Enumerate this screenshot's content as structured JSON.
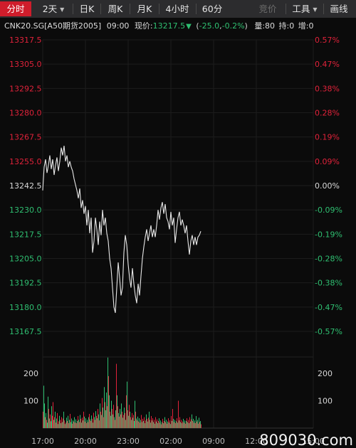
{
  "toolbar": {
    "tabs": [
      {
        "label": "分时",
        "active": true
      },
      {
        "label": "2天",
        "dropdown": true
      },
      {
        "label": "日K"
      },
      {
        "label": "周K"
      },
      {
        "label": "月K"
      },
      {
        "label": "4小时"
      },
      {
        "label": "60分"
      }
    ],
    "right": [
      {
        "label": "竞价",
        "disabled": true
      },
      {
        "label": "工具",
        "dropdown": true
      },
      {
        "label": "画线"
      }
    ]
  },
  "quote": {
    "symbol": "CNK20.SG[A50期货2005]",
    "time": "09:00",
    "price_label": "现价:",
    "price": "13217.5",
    "change": "-25.0",
    "change_pct": "-0.2%",
    "volume": "量:80",
    "open_interest": "持:0",
    "oi_change": "增:0"
  },
  "colors": {
    "up": "#e0223a",
    "down": "#2fbf71",
    "neutral": "#d8d8d8",
    "line": "#e8e8e8",
    "bg": "#0b0b0b"
  },
  "watermark": "809030.com",
  "chart_data": {
    "type": "line",
    "prev_close": 13242.5,
    "y_ticks": [
      "13317.5",
      "13305.0",
      "13292.5",
      "13280.0",
      "13267.5",
      "13255.0",
      "13242.5",
      "13230.0",
      "13217.5",
      "13205.0",
      "13192.5",
      "13180.0",
      "13167.5"
    ],
    "pct_ticks": [
      "0.57%",
      "0.47%",
      "0.38%",
      "0.28%",
      "0.19%",
      "0.09%",
      "0.00%",
      "-0.09%",
      "-0.19%",
      "-0.28%",
      "-0.38%",
      "-0.47%",
      "-0.57%"
    ],
    "ylim": [
      13167.5,
      13317.5
    ],
    "x_ticks": [
      "17:00",
      "20:00",
      "23:00",
      "02:00",
      "09:00",
      "12:00",
      "15:00"
    ],
    "volume_ticks": [
      "200",
      "100"
    ],
    "volume_max": 260,
    "price_points": [
      [
        0,
        13240
      ],
      [
        2,
        13252
      ],
      [
        4,
        13256
      ],
      [
        6,
        13249
      ],
      [
        8,
        13253
      ],
      [
        10,
        13258
      ],
      [
        12,
        13251
      ],
      [
        14,
        13256
      ],
      [
        16,
        13248
      ],
      [
        18,
        13253
      ],
      [
        20,
        13257
      ],
      [
        22,
        13250
      ],
      [
        24,
        13255
      ],
      [
        26,
        13262
      ],
      [
        28,
        13258
      ],
      [
        30,
        13263
      ],
      [
        32,
        13255
      ],
      [
        34,
        13258
      ],
      [
        36,
        13252
      ],
      [
        38,
        13255
      ],
      [
        40,
        13252
      ],
      [
        42,
        13250
      ],
      [
        44,
        13246
      ],
      [
        46,
        13243
      ],
      [
        48,
        13240
      ],
      [
        50,
        13236
      ],
      [
        52,
        13241
      ],
      [
        54,
        13231
      ],
      [
        56,
        13235
      ],
      [
        58,
        13228
      ],
      [
        60,
        13232
      ],
      [
        62,
        13222
      ],
      [
        64,
        13230
      ],
      [
        66,
        13218
      ],
      [
        68,
        13226
      ],
      [
        70,
        13208
      ],
      [
        72,
        13214
      ],
      [
        74,
        13226
      ],
      [
        76,
        13220
      ],
      [
        78,
        13212
      ],
      [
        80,
        13224
      ],
      [
        82,
        13217
      ],
      [
        84,
        13230
      ],
      [
        86,
        13222
      ],
      [
        88,
        13226
      ],
      [
        90,
        13218
      ],
      [
        92,
        13214
      ],
      [
        94,
        13205
      ],
      [
        96,
        13200
      ],
      [
        98,
        13190
      ],
      [
        100,
        13180
      ],
      [
        102,
        13177
      ],
      [
        104,
        13190
      ],
      [
        106,
        13203
      ],
      [
        108,
        13195
      ],
      [
        110,
        13186
      ],
      [
        112,
        13190
      ],
      [
        114,
        13208
      ],
      [
        116,
        13217
      ],
      [
        118,
        13212
      ],
      [
        120,
        13202
      ],
      [
        122,
        13195
      ],
      [
        124,
        13190
      ],
      [
        126,
        13200
      ],
      [
        128,
        13192
      ],
      [
        130,
        13186
      ],
      [
        132,
        13182
      ],
      [
        134,
        13192
      ],
      [
        136,
        13186
      ],
      [
        138,
        13196
      ],
      [
        140,
        13205
      ],
      [
        142,
        13211
      ],
      [
        144,
        13216
      ],
      [
        146,
        13220
      ],
      [
        148,
        13214
      ],
      [
        150,
        13218
      ],
      [
        152,
        13222
      ],
      [
        154,
        13216
      ],
      [
        156,
        13220
      ],
      [
        158,
        13216
      ],
      [
        160,
        13222
      ],
      [
        162,
        13230
      ],
      [
        164,
        13225
      ],
      [
        166,
        13231
      ],
      [
        168,
        13234
      ],
      [
        170,
        13228
      ],
      [
        172,
        13233
      ],
      [
        174,
        13226
      ],
      [
        176,
        13224
      ],
      [
        178,
        13220
      ],
      [
        180,
        13229
      ],
      [
        182,
        13222
      ],
      [
        184,
        13226
      ],
      [
        186,
        13213
      ],
      [
        188,
        13220
      ],
      [
        190,
        13226
      ],
      [
        192,
        13229
      ],
      [
        194,
        13222
      ],
      [
        196,
        13225
      ],
      [
        198,
        13222
      ],
      [
        200,
        13218
      ],
      [
        202,
        13222
      ],
      [
        204,
        13214
      ],
      [
        206,
        13207
      ],
      [
        208,
        13214
      ],
      [
        210,
        13217
      ],
      [
        212,
        13212
      ],
      [
        214,
        13216
      ],
      [
        216,
        13212
      ],
      [
        218,
        13216
      ],
      [
        220,
        13217
      ],
      [
        222,
        13219
      ]
    ],
    "volume_bars": [
      [
        0,
        60,
        1
      ],
      [
        1,
        155,
        0
      ],
      [
        2,
        90,
        0
      ],
      [
        3,
        40,
        1
      ],
      [
        4,
        55,
        0
      ],
      [
        5,
        30,
        1
      ],
      [
        6,
        20,
        0
      ],
      [
        7,
        115,
        0
      ],
      [
        8,
        70,
        1
      ],
      [
        9,
        35,
        0
      ],
      [
        10,
        50,
        1
      ],
      [
        11,
        25,
        0
      ],
      [
        12,
        80,
        0
      ],
      [
        13,
        45,
        1
      ],
      [
        14,
        95,
        1
      ],
      [
        15,
        30,
        0
      ],
      [
        16,
        40,
        1
      ],
      [
        17,
        60,
        0
      ],
      [
        18,
        20,
        1
      ],
      [
        19,
        35,
        0
      ],
      [
        20,
        55,
        1
      ],
      [
        21,
        15,
        0
      ],
      [
        22,
        25,
        1
      ],
      [
        23,
        45,
        0
      ],
      [
        24,
        30,
        1
      ],
      [
        25,
        18,
        0
      ],
      [
        26,
        40,
        1
      ],
      [
        27,
        22,
        0
      ],
      [
        28,
        35,
        1
      ],
      [
        29,
        60,
        0
      ],
      [
        30,
        28,
        1
      ],
      [
        31,
        15,
        0
      ],
      [
        32,
        20,
        1
      ],
      [
        33,
        38,
        0
      ],
      [
        34,
        26,
        1
      ],
      [
        35,
        45,
        0
      ],
      [
        36,
        18,
        1
      ],
      [
        37,
        30,
        0
      ],
      [
        38,
        52,
        1
      ],
      [
        39,
        22,
        0
      ],
      [
        40,
        35,
        0
      ],
      [
        41,
        16,
        1
      ],
      [
        42,
        28,
        0
      ],
      [
        43,
        24,
        1
      ],
      [
        44,
        40,
        0
      ],
      [
        45,
        20,
        1
      ],
      [
        46,
        32,
        0
      ],
      [
        47,
        18,
        1
      ],
      [
        48,
        26,
        0
      ],
      [
        49,
        44,
        1
      ],
      [
        50,
        30,
        0
      ],
      [
        51,
        22,
        1
      ],
      [
        52,
        48,
        0
      ],
      [
        53,
        34,
        1
      ],
      [
        54,
        20,
        0
      ],
      [
        55,
        38,
        1
      ],
      [
        56,
        28,
        0
      ],
      [
        57,
        60,
        1
      ],
      [
        58,
        42,
        0
      ],
      [
        59,
        24,
        1
      ],
      [
        60,
        36,
        0
      ],
      [
        61,
        18,
        1
      ],
      [
        62,
        30,
        0
      ],
      [
        63,
        22,
        1
      ],
      [
        64,
        40,
        0
      ],
      [
        65,
        52,
        1
      ],
      [
        66,
        32,
        0
      ],
      [
        67,
        26,
        1
      ],
      [
        68,
        46,
        0
      ],
      [
        69,
        34,
        1
      ],
      [
        70,
        20,
        0
      ],
      [
        71,
        56,
        1
      ],
      [
        72,
        40,
        0
      ],
      [
        73,
        30,
        1
      ],
      [
        74,
        62,
        0
      ],
      [
        75,
        44,
        1
      ],
      [
        76,
        36,
        0
      ],
      [
        77,
        70,
        1
      ],
      [
        78,
        50,
        0
      ],
      [
        79,
        28,
        1
      ],
      [
        80,
        90,
        0
      ],
      [
        81,
        60,
        1
      ],
      [
        82,
        48,
        0
      ],
      [
        83,
        110,
        1
      ],
      [
        84,
        75,
        0
      ],
      [
        85,
        40,
        1
      ],
      [
        86,
        150,
        0
      ],
      [
        87,
        95,
        1
      ],
      [
        88,
        65,
        0
      ],
      [
        89,
        130,
        0
      ],
      [
        90,
        80,
        1
      ],
      [
        91,
        258,
        0
      ],
      [
        92,
        190,
        1
      ],
      [
        93,
        120,
        0
      ],
      [
        94,
        60,
        1
      ],
      [
        95,
        45,
        0
      ],
      [
        96,
        100,
        0
      ],
      [
        97,
        70,
        1
      ],
      [
        98,
        50,
        0
      ],
      [
        99,
        85,
        1
      ],
      [
        100,
        40,
        0
      ],
      [
        101,
        30,
        1
      ],
      [
        102,
        65,
        0
      ],
      [
        103,
        235,
        1
      ],
      [
        104,
        120,
        0
      ],
      [
        105,
        80,
        1
      ],
      [
        106,
        55,
        0
      ],
      [
        107,
        42,
        1
      ],
      [
        108,
        70,
        0
      ],
      [
        109,
        50,
        1
      ],
      [
        110,
        90,
        0
      ],
      [
        111,
        60,
        1
      ],
      [
        112,
        38,
        0
      ],
      [
        113,
        48,
        1
      ],
      [
        114,
        75,
        0
      ],
      [
        115,
        55,
        1
      ],
      [
        116,
        30,
        0
      ],
      [
        117,
        120,
        1
      ],
      [
        118,
        170,
        0
      ],
      [
        119,
        65,
        1
      ],
      [
        120,
        45,
        0
      ],
      [
        121,
        85,
        1
      ],
      [
        122,
        60,
        0
      ],
      [
        123,
        40,
        1
      ],
      [
        124,
        30,
        0
      ],
      [
        125,
        55,
        1
      ],
      [
        126,
        38,
        0
      ],
      [
        127,
        48,
        1
      ],
      [
        128,
        26,
        0
      ],
      [
        129,
        100,
        0
      ],
      [
        130,
        60,
        1
      ],
      [
        131,
        35,
        0
      ],
      [
        132,
        28,
        1
      ],
      [
        133,
        42,
        0
      ],
      [
        134,
        24,
        1
      ],
      [
        135,
        36,
        0
      ],
      [
        136,
        20,
        1
      ],
      [
        137,
        30,
        0
      ],
      [
        138,
        48,
        1
      ],
      [
        139,
        22,
        0
      ],
      [
        140,
        34,
        1
      ],
      [
        141,
        26,
        0
      ],
      [
        142,
        40,
        1
      ],
      [
        143,
        18,
        0
      ],
      [
        144,
        28,
        1
      ],
      [
        145,
        50,
        0
      ],
      [
        146,
        34,
        1
      ],
      [
        147,
        24,
        0
      ],
      [
        148,
        38,
        1
      ],
      [
        149,
        60,
        0
      ],
      [
        150,
        30,
        1
      ],
      [
        151,
        20,
        0
      ],
      [
        152,
        44,
        1
      ],
      [
        153,
        28,
        0
      ],
      [
        154,
        36,
        1
      ],
      [
        155,
        22,
        0
      ],
      [
        156,
        30,
        1
      ],
      [
        157,
        16,
        0
      ],
      [
        158,
        40,
        1
      ],
      [
        159,
        24,
        0
      ],
      [
        160,
        32,
        1
      ],
      [
        161,
        18,
        0
      ],
      [
        162,
        26,
        1
      ],
      [
        163,
        36,
        0
      ],
      [
        164,
        20,
        1
      ],
      [
        165,
        28,
        0
      ],
      [
        166,
        14,
        1
      ],
      [
        167,
        22,
        0
      ],
      [
        168,
        34,
        1
      ],
      [
        169,
        18,
        0
      ],
      [
        170,
        26,
        1
      ],
      [
        171,
        40,
        0
      ],
      [
        172,
        22,
        1
      ],
      [
        173,
        30,
        0
      ],
      [
        174,
        16,
        1
      ],
      [
        175,
        24,
        0
      ],
      [
        176,
        36,
        1
      ],
      [
        177,
        20,
        0
      ],
      [
        178,
        28,
        1
      ],
      [
        179,
        15,
        0
      ],
      [
        180,
        44,
        1
      ],
      [
        181,
        26,
        0
      ],
      [
        182,
        70,
        1
      ],
      [
        183,
        34,
        0
      ],
      [
        184,
        22,
        1
      ],
      [
        185,
        30,
        0
      ],
      [
        186,
        18,
        1
      ],
      [
        187,
        25,
        0
      ],
      [
        188,
        36,
        1
      ],
      [
        189,
        20,
        0
      ],
      [
        190,
        100,
        1
      ],
      [
        191,
        28,
        0
      ],
      [
        192,
        40,
        1
      ],
      [
        193,
        22,
        0
      ],
      [
        194,
        30,
        1
      ],
      [
        195,
        18,
        0
      ],
      [
        196,
        24,
        1
      ],
      [
        197,
        34,
        0
      ],
      [
        198,
        20,
        1
      ],
      [
        199,
        28,
        0
      ],
      [
        200,
        16,
        1
      ],
      [
        201,
        26,
        0
      ],
      [
        202,
        36,
        1
      ],
      [
        203,
        22,
        0
      ],
      [
        204,
        30,
        1
      ],
      [
        205,
        18,
        0
      ],
      [
        206,
        40,
        1
      ],
      [
        207,
        24,
        0
      ],
      [
        208,
        32,
        1
      ],
      [
        209,
        50,
        0
      ],
      [
        210,
        26,
        1
      ],
      [
        211,
        34,
        0
      ],
      [
        212,
        20,
        1
      ],
      [
        213,
        28,
        0
      ],
      [
        214,
        18,
        1
      ],
      [
        215,
        44,
        0
      ],
      [
        216,
        24,
        1
      ],
      [
        217,
        30,
        0
      ],
      [
        218,
        16,
        1
      ],
      [
        219,
        38,
        0
      ],
      [
        220,
        22,
        1
      ],
      [
        221,
        26,
        0
      ],
      [
        222,
        14,
        1
      ]
    ]
  }
}
